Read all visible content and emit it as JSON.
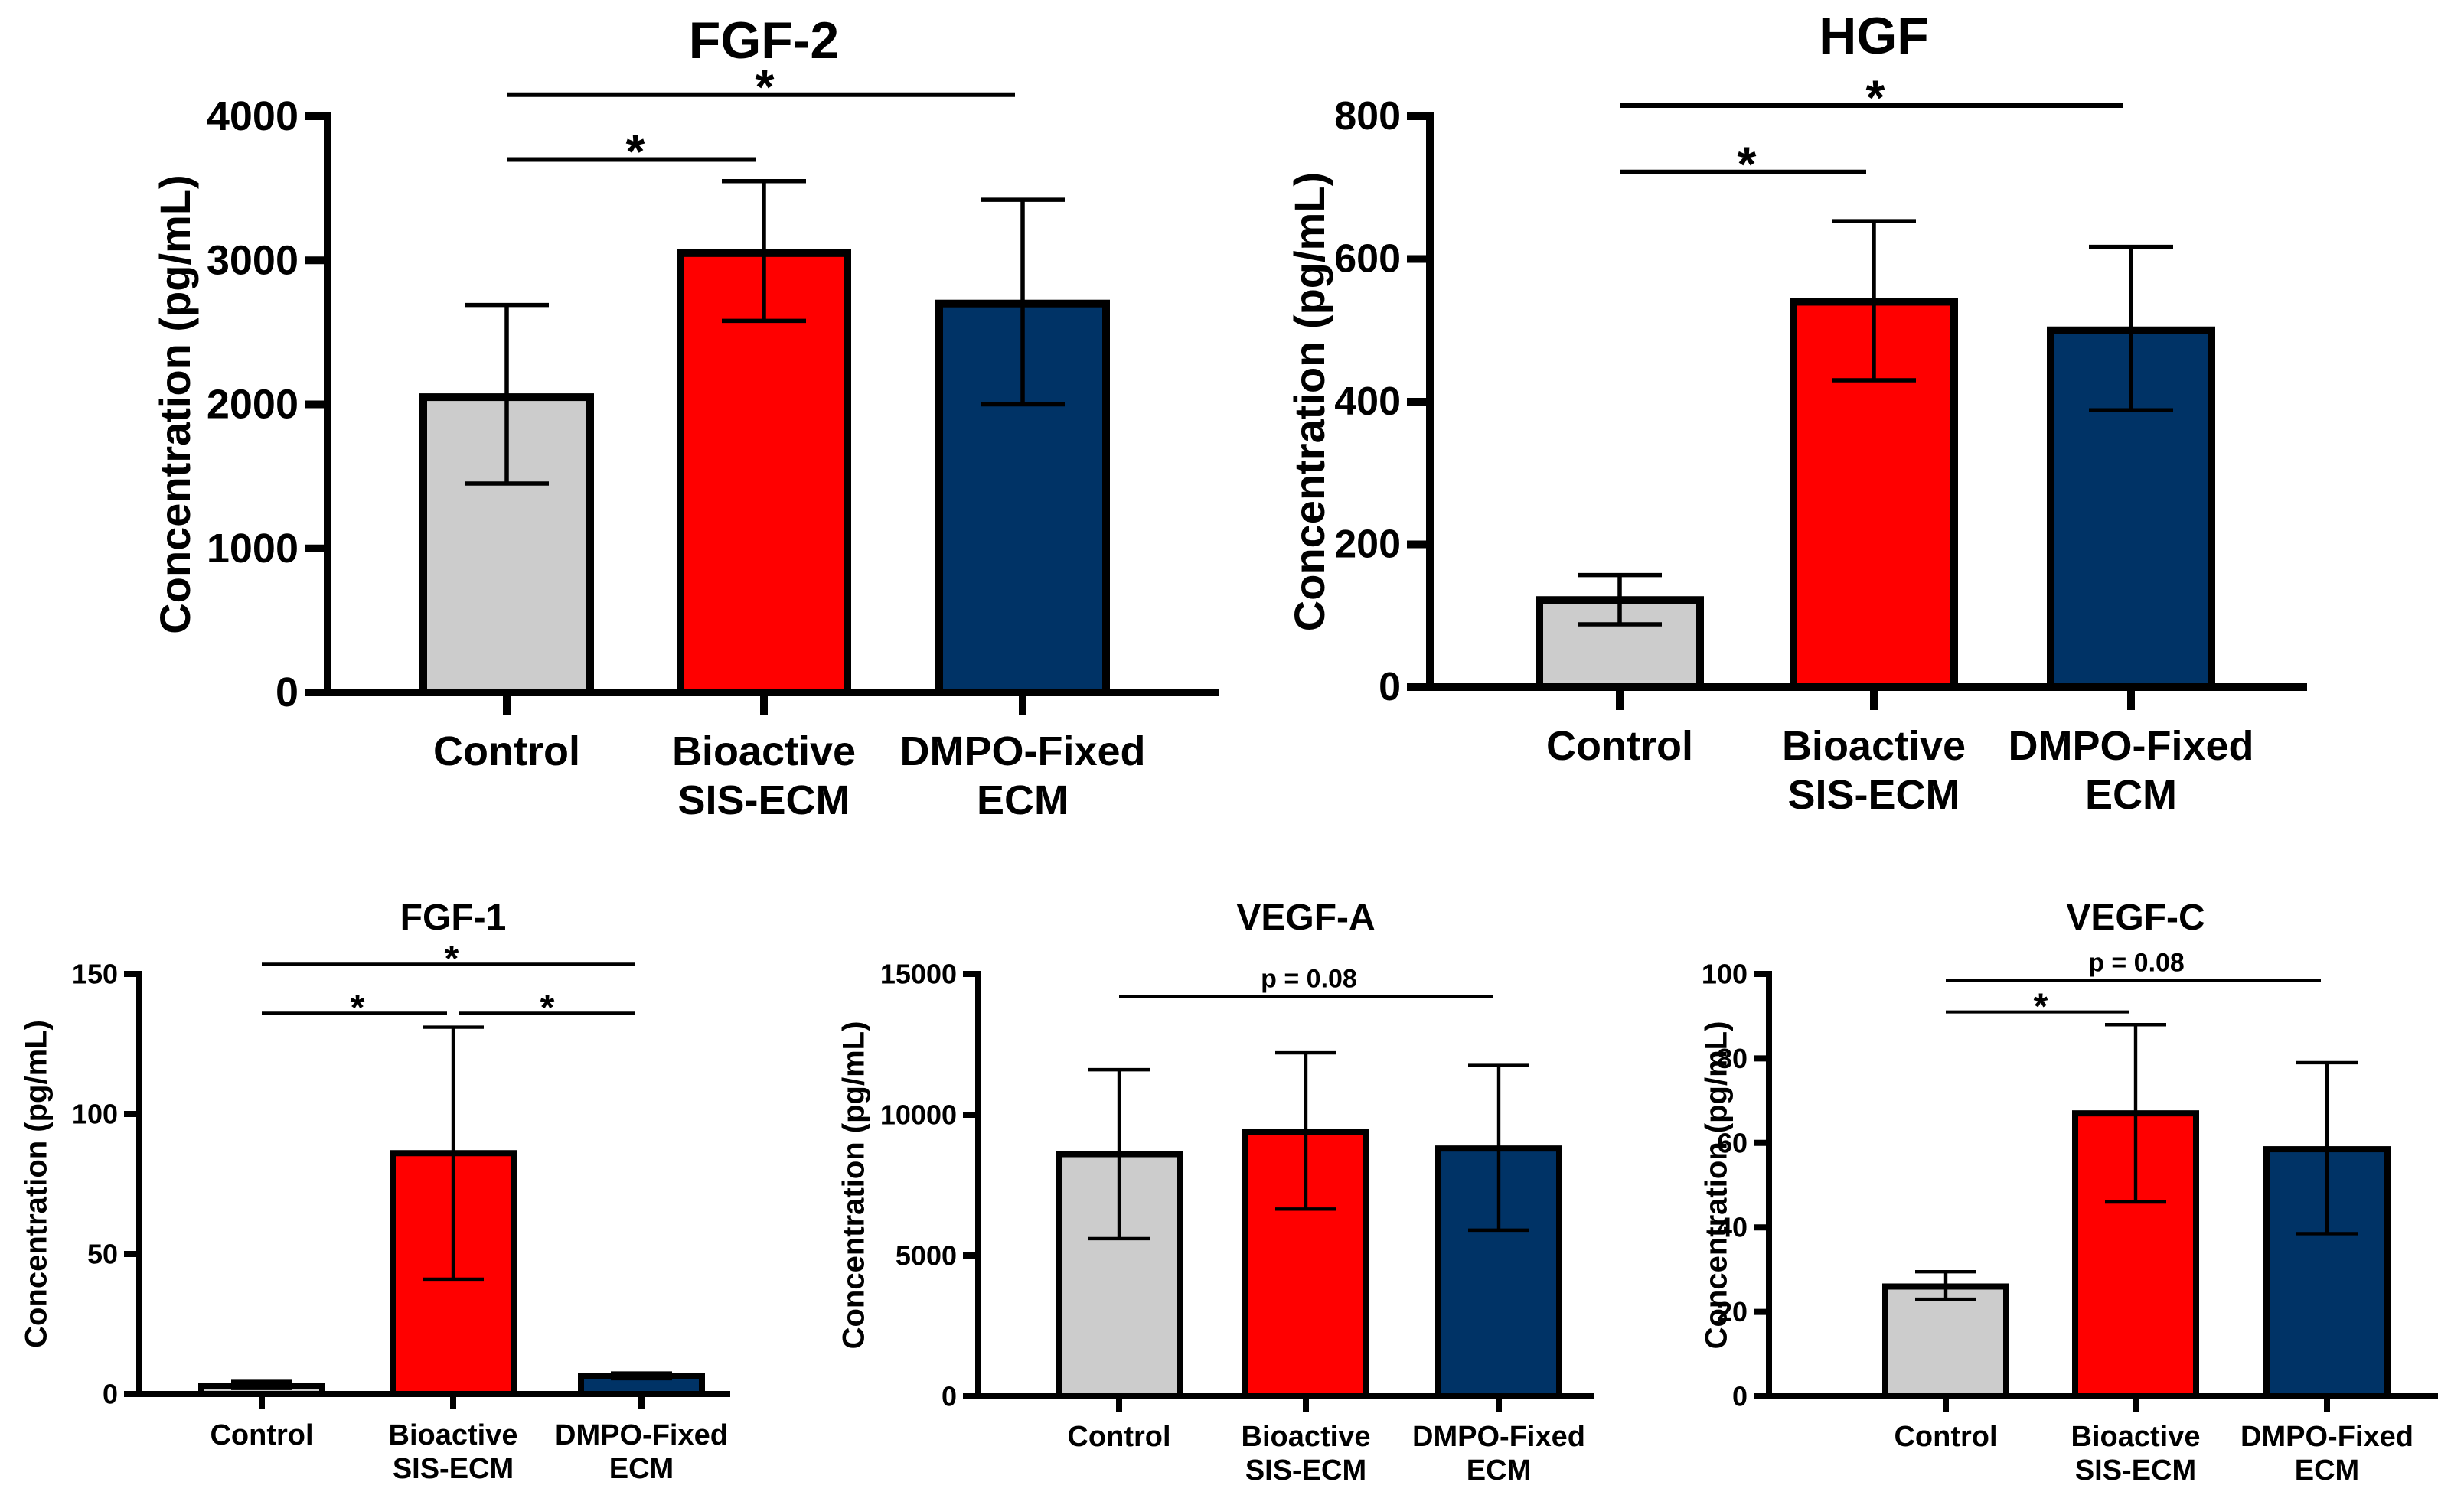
{
  "chart_data": [
    {
      "type": "bar",
      "title": "FGF-2",
      "ylabel": "Concentration (pg/mL)",
      "xlabel": "",
      "ylim": [
        0,
        4000
      ],
      "yticks": [
        "0",
        "1000",
        "2000",
        "3000",
        "4000"
      ],
      "categories": [
        [
          "Control"
        ],
        [
          "Bioactive",
          "SIS-ECM"
        ],
        [
          "DMPO-Fixed",
          "ECM"
        ]
      ],
      "values": [
        2050,
        3050,
        2700
      ],
      "error": [
        [
          1450,
          2690
        ],
        [
          2580,
          3550
        ],
        [
          2000,
          3420
        ]
      ],
      "colors": [
        "#cccccc",
        "#ff0000",
        "#003366"
      ],
      "annotations": [
        {
          "from": 0,
          "to": 2,
          "value": 4150,
          "label": "*"
        },
        {
          "from": 0,
          "to": 1,
          "value": 3700,
          "label": "*"
        }
      ]
    },
    {
      "type": "bar",
      "title": "HGF",
      "ylabel": "Concentration (pg/mL)",
      "xlabel": "",
      "ylim": [
        0,
        800
      ],
      "yticks": [
        "0",
        "200",
        "400",
        "600",
        "800"
      ],
      "categories": [
        [
          "Control"
        ],
        [
          "Bioactive",
          "SIS-ECM"
        ],
        [
          "DMPO-Fixed",
          "ECM"
        ]
      ],
      "values": [
        122,
        540,
        500
      ],
      "error": [
        [
          88,
          157
        ],
        [
          430,
          653
        ],
        [
          388,
          617
        ]
      ],
      "colors": [
        "#cccccc",
        "#ff0000",
        "#003366"
      ],
      "annotations": [
        {
          "from": 0,
          "to": 2,
          "value": 815,
          "label": "*"
        },
        {
          "from": 0,
          "to": 1,
          "value": 722,
          "label": "*"
        }
      ]
    },
    {
      "type": "bar",
      "title": "FGF-1",
      "ylabel": "Concentration (pg/mL)",
      "xlabel": "",
      "ylim": [
        0,
        150
      ],
      "yticks": [
        "0",
        "50",
        "100",
        "150"
      ],
      "categories": [
        [
          "Control"
        ],
        [
          "Bioactive",
          "SIS-ECM"
        ],
        [
          "DMPO-Fixed",
          "ECM"
        ]
      ],
      "values": [
        3,
        86,
        6.5
      ],
      "error": [
        [
          2,
          4.5
        ],
        [
          41,
          131
        ],
        [
          5.5,
          7.5
        ]
      ],
      "colors": [
        "#cccccc",
        "#ff0000",
        "#003366"
      ],
      "annotations": [
        {
          "from": 0,
          "to": 2,
          "value": 153.5,
          "label": "*"
        },
        {
          "from": 0,
          "to": 1,
          "value": 136,
          "label": "*"
        },
        {
          "from": 1,
          "to": 2,
          "value": 136,
          "label": "*"
        }
      ]
    },
    {
      "type": "bar",
      "title": "VEGF-A",
      "ylabel": "Concentration (pg/mL)",
      "xlabel": "",
      "ylim": [
        0,
        15000
      ],
      "yticks": [
        "0",
        "5000",
        "10000",
        "15000"
      ],
      "categories": [
        [
          "Control"
        ],
        [
          "Bioactive",
          "SIS-ECM"
        ],
        [
          "DMPO-Fixed",
          "ECM"
        ]
      ],
      "values": [
        8600,
        9400,
        8800
      ],
      "error": [
        [
          5600,
          11600
        ],
        [
          6650,
          12200
        ],
        [
          5900,
          11750
        ]
      ],
      "colors": [
        "#cccccc",
        "#ff0000",
        "#003366"
      ],
      "annotations": [
        {
          "from": 0,
          "to": 2,
          "value": 14200,
          "label": "p = 0.08"
        }
      ]
    },
    {
      "type": "bar",
      "title": "VEGF-C",
      "ylabel": "Concentration (pg/mL)",
      "xlabel": "",
      "ylim": [
        0,
        100
      ],
      "yticks": [
        "0",
        "20",
        "40",
        "60",
        "80",
        "100"
      ],
      "categories": [
        [
          "Control"
        ],
        [
          "Bioactive",
          "SIS-ECM"
        ],
        [
          "DMPO-Fixed",
          "ECM"
        ]
      ],
      "values": [
        26,
        67,
        58.5
      ],
      "error": [
        [
          23,
          29.5
        ],
        [
          46,
          88
        ],
        [
          38.5,
          79
        ]
      ],
      "colors": [
        "#cccccc",
        "#ff0000",
        "#003366"
      ],
      "annotations": [
        {
          "from": 0,
          "to": 2,
          "value": 98.5,
          "label": "p = 0.08"
        },
        {
          "from": 0,
          "to": 1,
          "value": 91,
          "label": "*"
        }
      ]
    }
  ]
}
